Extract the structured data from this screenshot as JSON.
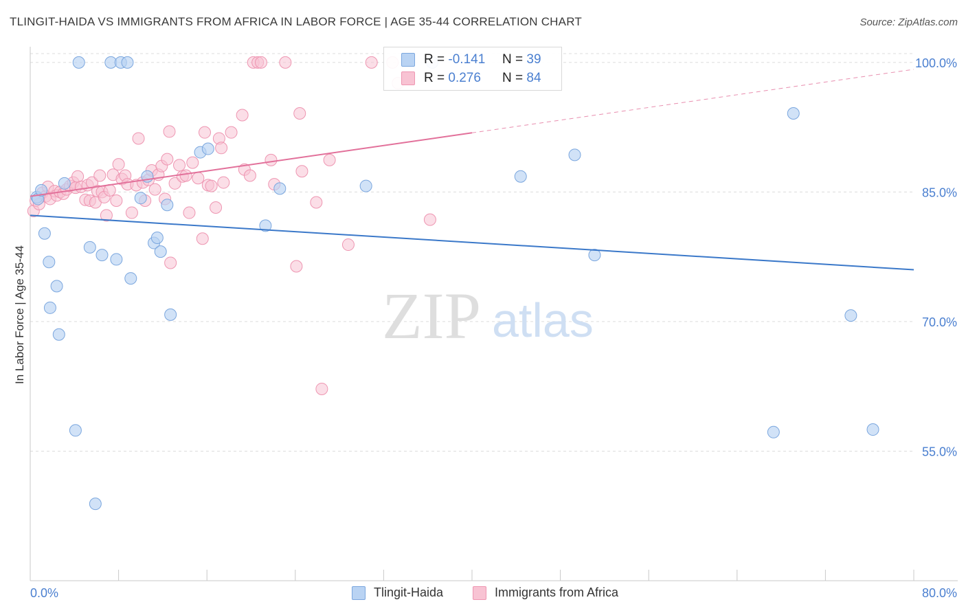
{
  "title": "TLINGIT-HAIDA VS IMMIGRANTS FROM AFRICA IN LABOR FORCE | AGE 35-44 CORRELATION CHART",
  "source": "Source: ZipAtlas.com",
  "watermark": {
    "zip": "ZIP",
    "atlas": "atlas"
  },
  "legend": {
    "rows": [
      {
        "r_label": "R =",
        "r_value": "-0.141",
        "n_label": "N =",
        "n_value": "39"
      },
      {
        "r_label": "R =",
        "r_value": "0.276",
        "n_label": "N =",
        "n_value": "84"
      }
    ]
  },
  "bottom_legend": {
    "series1": "Tlingit-Haida",
    "series2": "Immigrants from Africa"
  },
  "colors": {
    "blue_fill": "#b9d3f3",
    "blue_stroke": "#7aa6de",
    "blue_line": "#3a78c9",
    "pink_fill": "#f8c3d3",
    "pink_stroke": "#ee95b1",
    "pink_line": "#e2709a",
    "axis_label": "#4a7fd0",
    "grid": "#dcdcdc"
  },
  "chart_data": {
    "type": "scatter",
    "title": "TLINGIT-HAIDA VS IMMIGRANTS FROM AFRICA IN LABOR FORCE | AGE 35-44 CORRELATION CHART",
    "xlabel": "",
    "ylabel": "In Labor Force | Age 35-44",
    "xlim": [
      0,
      80
    ],
    "ylim": [
      40,
      101.5
    ],
    "x_tick_labels": [
      "0.0%",
      "80.0%"
    ],
    "y_ticks": [
      55,
      70,
      85,
      100
    ],
    "y_tick_labels": [
      "55.0%",
      "70.0%",
      "85.0%",
      "100.0%"
    ],
    "grid": true,
    "series": [
      {
        "name": "Tlingit-Haida",
        "color": "#b9d3f3",
        "R": -0.141,
        "N": 39,
        "trend": {
          "x": [
            0,
            80
          ],
          "y": [
            82.3,
            76.0
          ],
          "solid_to": 80
        },
        "points": [
          [
            0.6,
            84.4
          ],
          [
            0.7,
            84.2
          ],
          [
            1.0,
            85.2
          ],
          [
            1.3,
            80.2
          ],
          [
            1.7,
            76.9
          ],
          [
            1.8,
            71.6
          ],
          [
            2.4,
            74.1
          ],
          [
            2.6,
            68.5
          ],
          [
            3.1,
            86.0
          ],
          [
            4.1,
            57.4
          ],
          [
            4.4,
            100.0
          ],
          [
            5.4,
            78.6
          ],
          [
            5.9,
            48.9
          ],
          [
            6.5,
            77.7
          ],
          [
            7.3,
            100.0
          ],
          [
            7.8,
            77.2
          ],
          [
            8.2,
            100.0
          ],
          [
            8.8,
            100.0
          ],
          [
            9.1,
            75.0
          ],
          [
            10.0,
            84.3
          ],
          [
            10.6,
            86.8
          ],
          [
            11.2,
            79.1
          ],
          [
            11.5,
            79.7
          ],
          [
            11.8,
            78.1
          ],
          [
            12.4,
            83.5
          ],
          [
            12.7,
            70.8
          ],
          [
            15.4,
            89.6
          ],
          [
            16.1,
            90.0
          ],
          [
            21.3,
            81.1
          ],
          [
            22.6,
            85.4
          ],
          [
            30.4,
            85.7
          ],
          [
            36.4,
            100.0
          ],
          [
            44.4,
            86.8
          ],
          [
            49.3,
            89.3
          ],
          [
            51.1,
            77.7
          ],
          [
            67.3,
            57.2
          ],
          [
            69.1,
            94.1
          ],
          [
            74.3,
            70.7
          ],
          [
            76.3,
            57.5
          ]
        ]
      },
      {
        "name": "Immigrants from Africa",
        "color": "#f8c3d3",
        "R": 0.276,
        "N": 84,
        "trend": {
          "x": [
            0,
            80
          ],
          "y": [
            84.5,
            99.2
          ],
          "solid_to": 40
        },
        "points": [
          [
            0.3,
            82.8
          ],
          [
            0.5,
            84.0
          ],
          [
            0.8,
            83.6
          ],
          [
            1.1,
            84.9
          ],
          [
            1.4,
            84.5
          ],
          [
            1.6,
            85.6
          ],
          [
            1.8,
            84.2
          ],
          [
            2.2,
            85.1
          ],
          [
            2.4,
            84.6
          ],
          [
            2.7,
            85.0
          ],
          [
            3.0,
            84.8
          ],
          [
            3.3,
            85.3
          ],
          [
            3.6,
            85.7
          ],
          [
            3.9,
            86.1
          ],
          [
            4.1,
            85.5
          ],
          [
            4.3,
            86.8
          ],
          [
            4.6,
            85.6
          ],
          [
            5.0,
            84.1
          ],
          [
            5.2,
            85.8
          ],
          [
            5.4,
            84.0
          ],
          [
            5.6,
            86.1
          ],
          [
            5.9,
            83.8
          ],
          [
            6.1,
            85.1
          ],
          [
            6.3,
            86.9
          ],
          [
            6.5,
            85.0
          ],
          [
            6.7,
            84.4
          ],
          [
            6.9,
            82.3
          ],
          [
            7.2,
            85.2
          ],
          [
            7.5,
            87.0
          ],
          [
            7.8,
            84.0
          ],
          [
            8.0,
            88.2
          ],
          [
            8.3,
            86.5
          ],
          [
            8.6,
            86.9
          ],
          [
            8.8,
            85.9
          ],
          [
            9.2,
            82.6
          ],
          [
            9.6,
            85.8
          ],
          [
            9.8,
            91.2
          ],
          [
            10.2,
            86.1
          ],
          [
            10.4,
            84.0
          ],
          [
            10.7,
            86.4
          ],
          [
            11.0,
            87.5
          ],
          [
            11.3,
            85.3
          ],
          [
            11.6,
            87.0
          ],
          [
            11.9,
            88.0
          ],
          [
            12.2,
            84.2
          ],
          [
            12.4,
            88.8
          ],
          [
            12.7,
            76.8
          ],
          [
            12.6,
            92.0
          ],
          [
            13.1,
            86.0
          ],
          [
            13.5,
            88.1
          ],
          [
            13.8,
            86.8
          ],
          [
            14.1,
            86.9
          ],
          [
            14.4,
            82.6
          ],
          [
            14.7,
            88.4
          ],
          [
            15.2,
            86.6
          ],
          [
            15.6,
            79.6
          ],
          [
            15.8,
            91.9
          ],
          [
            16.1,
            85.8
          ],
          [
            16.4,
            85.7
          ],
          [
            16.8,
            83.2
          ],
          [
            17.1,
            91.2
          ],
          [
            17.3,
            90.1
          ],
          [
            17.5,
            86.1
          ],
          [
            18.2,
            91.9
          ],
          [
            19.2,
            93.9
          ],
          [
            19.4,
            87.6
          ],
          [
            19.9,
            86.9
          ],
          [
            20.2,
            100.0
          ],
          [
            20.6,
            100.0
          ],
          [
            20.9,
            100.0
          ],
          [
            21.8,
            88.7
          ],
          [
            22.1,
            85.9
          ],
          [
            23.1,
            100.0
          ],
          [
            24.1,
            76.4
          ],
          [
            24.4,
            94.1
          ],
          [
            24.6,
            87.4
          ],
          [
            25.9,
            83.8
          ],
          [
            26.4,
            62.2
          ],
          [
            27.1,
            88.7
          ],
          [
            28.8,
            78.9
          ],
          [
            30.9,
            100.0
          ],
          [
            32.8,
            100.0
          ],
          [
            33.3,
            97.6
          ],
          [
            36.2,
            81.8
          ]
        ]
      }
    ]
  }
}
